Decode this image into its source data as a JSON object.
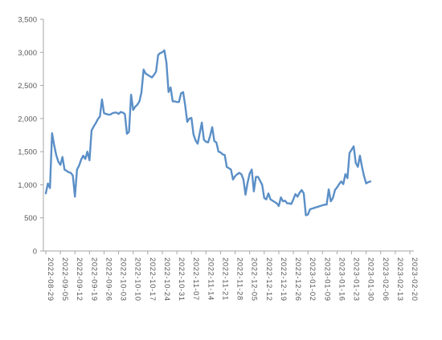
{
  "chart_data": {
    "type": "line",
    "title": "",
    "xlabel": "",
    "ylabel": "",
    "ylim": [
      0,
      3500
    ],
    "y_ticks": [
      "0",
      "500",
      "1,000",
      "1,500",
      "2,000",
      "2,500",
      "3,000",
      "3,500"
    ],
    "y_tick_values": [
      0,
      500,
      1000,
      1500,
      2000,
      2500,
      3000,
      3500
    ],
    "x_tick_labels": [
      "2022-08-29",
      "2022-09-05",
      "2022-09-12",
      "2022-09-19",
      "2022-09-26",
      "2022-10-03",
      "2022-10-10",
      "2022-10-17",
      "2022-10-24",
      "2022-10-31",
      "2022-11-07",
      "2022-11-14",
      "2022-11-21",
      "2022-11-28",
      "2022-12-05",
      "2022-12-12",
      "2022-12-19",
      "2022-12-26",
      "2023-01-02",
      "2023-01-09",
      "2023-01-16",
      "2023-01-23",
      "2023-01-30",
      "2023-02-06",
      "2023-02-13",
      "2023-02-20"
    ],
    "grid": false,
    "legend": "none",
    "line_color": "#5b8fc7",
    "series": [
      {
        "points": [
          [
            "2022-08-29",
            870
          ],
          [
            "2022-08-30",
            1020
          ],
          [
            "2022-08-31",
            950
          ],
          [
            "2022-09-01",
            1780
          ],
          [
            "2022-09-02",
            1600
          ],
          [
            "2022-09-03",
            1450
          ],
          [
            "2022-09-04",
            1350
          ],
          [
            "2022-09-05",
            1300
          ],
          [
            "2022-09-06",
            1420
          ],
          [
            "2022-09-07",
            1230
          ],
          [
            "2022-09-08",
            1210
          ],
          [
            "2022-09-09",
            1190
          ],
          [
            "2022-09-10",
            1180
          ],
          [
            "2022-09-11",
            1140
          ],
          [
            "2022-09-12",
            820
          ],
          [
            "2022-09-13",
            1230
          ],
          [
            "2022-09-14",
            1290
          ],
          [
            "2022-09-15",
            1380
          ],
          [
            "2022-09-16",
            1440
          ],
          [
            "2022-09-17",
            1390
          ],
          [
            "2022-09-18",
            1500
          ],
          [
            "2022-09-19",
            1370
          ],
          [
            "2022-09-20",
            1820
          ],
          [
            "2022-09-21",
            1880
          ],
          [
            "2022-09-22",
            1930
          ],
          [
            "2022-09-23",
            1990
          ],
          [
            "2022-09-24",
            2030
          ],
          [
            "2022-09-25",
            2290
          ],
          [
            "2022-09-26",
            2080
          ],
          [
            "2022-09-27",
            2070
          ],
          [
            "2022-09-28",
            2060
          ],
          [
            "2022-09-29",
            2060
          ],
          [
            "2022-09-30",
            2080
          ],
          [
            "2022-10-01",
            2090
          ],
          [
            "2022-10-02",
            2090
          ],
          [
            "2022-10-03",
            2070
          ],
          [
            "2022-10-04",
            2100
          ],
          [
            "2022-10-05",
            2090
          ],
          [
            "2022-10-06",
            2070
          ],
          [
            "2022-10-07",
            1770
          ],
          [
            "2022-10-08",
            1800
          ],
          [
            "2022-10-09",
            2360
          ],
          [
            "2022-10-10",
            2130
          ],
          [
            "2022-10-11",
            2180
          ],
          [
            "2022-10-12",
            2210
          ],
          [
            "2022-10-13",
            2260
          ],
          [
            "2022-10-14",
            2400
          ],
          [
            "2022-10-15",
            2740
          ],
          [
            "2022-10-16",
            2680
          ],
          [
            "2022-10-17",
            2660
          ],
          [
            "2022-10-18",
            2640
          ],
          [
            "2022-10-19",
            2620
          ],
          [
            "2022-10-20",
            2660
          ],
          [
            "2022-10-21",
            2710
          ],
          [
            "2022-10-22",
            2960
          ],
          [
            "2022-10-23",
            2990
          ],
          [
            "2022-10-24",
            3000
          ],
          [
            "2022-10-25",
            3030
          ],
          [
            "2022-10-26",
            2840
          ],
          [
            "2022-10-27",
            2400
          ],
          [
            "2022-10-28",
            2470
          ],
          [
            "2022-10-29",
            2260
          ],
          [
            "2022-10-30",
            2260
          ],
          [
            "2022-10-31",
            2250
          ],
          [
            "2022-11-01",
            2250
          ],
          [
            "2022-11-02",
            2380
          ],
          [
            "2022-11-03",
            2400
          ],
          [
            "2022-11-04",
            2200
          ],
          [
            "2022-11-05",
            1950
          ],
          [
            "2022-11-06",
            2000
          ],
          [
            "2022-11-07",
            2010
          ],
          [
            "2022-11-08",
            1760
          ],
          [
            "2022-11-09",
            1670
          ],
          [
            "2022-11-10",
            1620
          ],
          [
            "2022-11-11",
            1780
          ],
          [
            "2022-11-12",
            1940
          ],
          [
            "2022-11-13",
            1680
          ],
          [
            "2022-11-14",
            1650
          ],
          [
            "2022-11-15",
            1640
          ],
          [
            "2022-11-16",
            1740
          ],
          [
            "2022-11-17",
            1870
          ],
          [
            "2022-11-18",
            1660
          ],
          [
            "2022-11-19",
            1640
          ],
          [
            "2022-11-20",
            1500
          ],
          [
            "2022-11-21",
            1490
          ],
          [
            "2022-11-22",
            1460
          ],
          [
            "2022-11-23",
            1450
          ],
          [
            "2022-11-24",
            1270
          ],
          [
            "2022-11-25",
            1250
          ],
          [
            "2022-11-26",
            1230
          ],
          [
            "2022-11-27",
            1080
          ],
          [
            "2022-11-28",
            1130
          ],
          [
            "2022-11-29",
            1160
          ],
          [
            "2022-11-30",
            1180
          ],
          [
            "2022-12-01",
            1160
          ],
          [
            "2022-12-02",
            1080
          ],
          [
            "2022-12-03",
            850
          ],
          [
            "2022-12-04",
            1030
          ],
          [
            "2022-12-05",
            1170
          ],
          [
            "2022-12-06",
            1230
          ],
          [
            "2022-12-07",
            900
          ],
          [
            "2022-12-08",
            1120
          ],
          [
            "2022-12-09",
            1120
          ],
          [
            "2022-12-10",
            1060
          ],
          [
            "2022-12-11",
            1000
          ],
          [
            "2022-12-12",
            800
          ],
          [
            "2022-12-13",
            780
          ],
          [
            "2022-12-14",
            870
          ],
          [
            "2022-12-15",
            780
          ],
          [
            "2022-12-16",
            760
          ],
          [
            "2022-12-17",
            740
          ],
          [
            "2022-12-18",
            720
          ],
          [
            "2022-12-19",
            680
          ],
          [
            "2022-12-20",
            810
          ],
          [
            "2022-12-21",
            750
          ],
          [
            "2022-12-22",
            760
          ],
          [
            "2022-12-23",
            720
          ],
          [
            "2022-12-24",
            720
          ],
          [
            "2022-12-25",
            710
          ],
          [
            "2022-12-26",
            780
          ],
          [
            "2022-12-27",
            860
          ],
          [
            "2022-12-28",
            820
          ],
          [
            "2022-12-29",
            880
          ],
          [
            "2022-12-30",
            920
          ],
          [
            "2022-12-31",
            870
          ],
          [
            "2023-01-01",
            540
          ],
          [
            "2023-01-02",
            550
          ],
          [
            "2023-01-03",
            630
          ],
          [
            "2023-01-04",
            640
          ],
          [
            "2023-01-05",
            650
          ],
          [
            "2023-01-06",
            660
          ],
          [
            "2023-01-07",
            670
          ],
          [
            "2023-01-08",
            680
          ],
          [
            "2023-01-09",
            690
          ],
          [
            "2023-01-10",
            700
          ],
          [
            "2023-01-11",
            700
          ],
          [
            "2023-01-12",
            930
          ],
          [
            "2023-01-13",
            750
          ],
          [
            "2023-01-14",
            800
          ],
          [
            "2023-01-15",
            920
          ],
          [
            "2023-01-16",
            960
          ],
          [
            "2023-01-17",
            1010
          ],
          [
            "2023-01-18",
            1050
          ],
          [
            "2023-01-19",
            1010
          ],
          [
            "2023-01-20",
            1160
          ],
          [
            "2023-01-21",
            1100
          ],
          [
            "2023-01-22",
            1480
          ],
          [
            "2023-01-23",
            1530
          ],
          [
            "2023-01-24",
            1580
          ],
          [
            "2023-01-25",
            1330
          ],
          [
            "2023-01-26",
            1270
          ],
          [
            "2023-01-27",
            1440
          ],
          [
            "2023-01-28",
            1270
          ],
          [
            "2023-01-29",
            1130
          ],
          [
            "2023-01-30",
            1020
          ],
          [
            "2023-01-31",
            1040
          ],
          [
            "2023-02-01",
            1050
          ]
        ]
      }
    ]
  }
}
